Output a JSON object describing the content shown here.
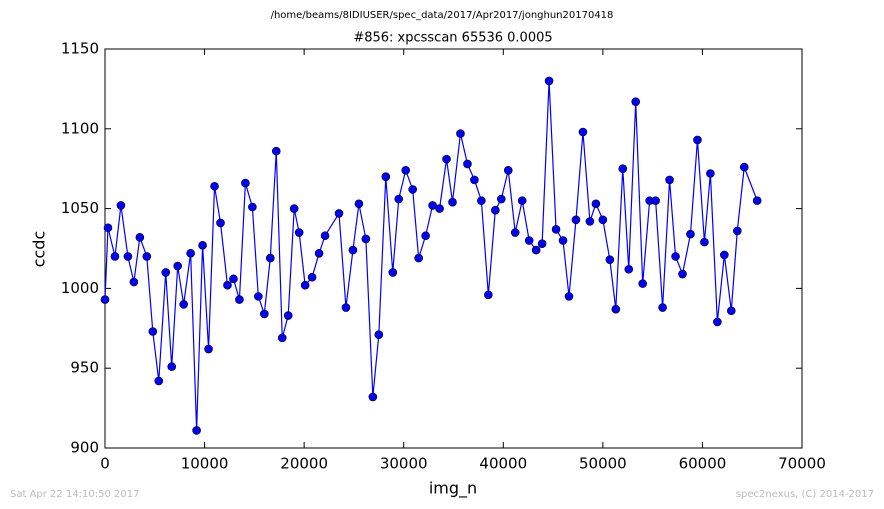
{
  "chart_data": {
    "type": "line",
    "suptitle": "/home/beams/8IDIUSER/spec_data/2017/Apr2017/jonghun20170418",
    "title": "#856: xpcsscan 65536 0.0005",
    "x_label": "img_n",
    "y_label": "ccdc",
    "footer_left": "Sat Apr 22 14:10:50 2017",
    "footer_right": "spec2nexus, (C) 2014-2017",
    "color": "#0000ff",
    "x": [
      0,
      300,
      1000,
      1600,
      2300,
      2900,
      3500,
      4200,
      4800,
      5400,
      6100,
      6700,
      7300,
      7900,
      8600,
      9200,
      9800,
      10400,
      11000,
      11600,
      12300,
      12900,
      13500,
      14100,
      14800,
      15400,
      16000,
      16600,
      17200,
      17800,
      18400,
      19000,
      19500,
      20100,
      20800,
      21500,
      22100,
      23500,
      24200,
      24900,
      25500,
      26200,
      26900,
      27500,
      28200,
      28900,
      29500,
      30200,
      30900,
      31500,
      32200,
      32900,
      33600,
      34300,
      34900,
      35700,
      36400,
      37100,
      37800,
      38500,
      39200,
      39800,
      40500,
      41200,
      41900,
      42600,
      43300,
      43900,
      44600,
      45300,
      46000,
      46600,
      47300,
      48000,
      48700,
      49300,
      50000,
      50700,
      51300,
      52000,
      52600,
      53300,
      54000,
      54700,
      55300,
      56000,
      56700,
      57300,
      58000,
      58800,
      59500,
      60200,
      60800,
      61500,
      62200,
      62900,
      63500,
      64200,
      65500
    ],
    "values": [
      993,
      1038,
      1020,
      1052,
      1020,
      1004,
      1032,
      1020,
      973,
      942,
      1010,
      951,
      1014,
      990,
      1022,
      911,
      1027,
      962,
      1064,
      1041,
      1002,
      1006,
      993,
      1066,
      1051,
      995,
      984,
      1019,
      1086,
      969,
      983,
      1050,
      1035,
      1002,
      1007,
      1022,
      1033,
      1047,
      988,
      1024,
      1053,
      1031,
      932,
      971,
      1070,
      1010,
      1056,
      1074,
      1062,
      1019,
      1033,
      1052,
      1050,
      1081,
      1054,
      1097,
      1078,
      1068,
      1055,
      996,
      1049,
      1056,
      1074,
      1035,
      1055,
      1030,
      1024,
      1028,
      1130,
      1037,
      1030,
      995,
      1043,
      1098,
      1042,
      1053,
      1043,
      1018,
      987,
      1075,
      1012,
      1117,
      1003,
      1055,
      1055,
      988,
      1068,
      1020,
      1009,
      1034,
      1093,
      1029,
      1072,
      979,
      1021,
      986,
      1036,
      1076,
      1055
    ],
    "xlim": [
      0,
      70000
    ],
    "ylim": [
      900,
      1150
    ],
    "xticks": [
      0,
      10000,
      20000,
      30000,
      40000,
      50000,
      60000,
      70000
    ],
    "yticks": [
      900,
      950,
      1000,
      1050,
      1100,
      1150
    ],
    "grid": false
  }
}
